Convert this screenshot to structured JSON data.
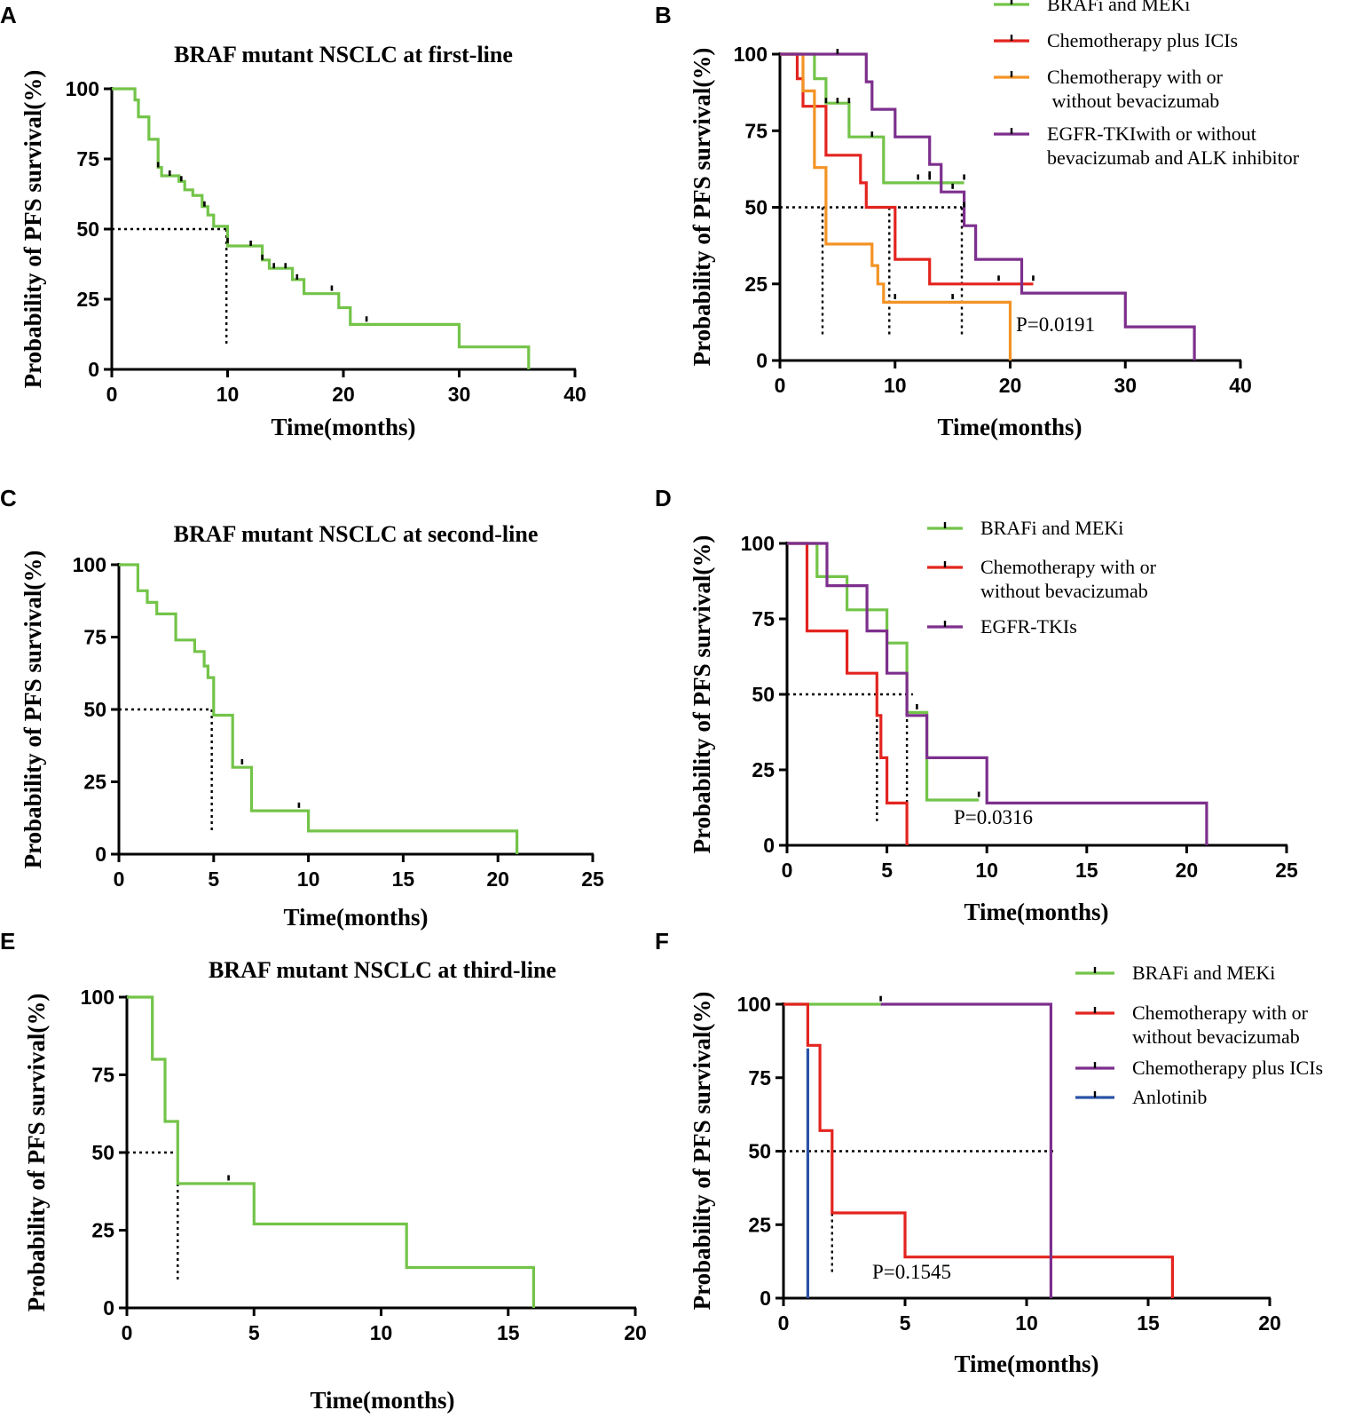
{
  "colors": {
    "green": "#73c449",
    "red": "#e3241f",
    "orange": "#f39325",
    "purple": "#7d2f8d",
    "blue": "#2b53a6",
    "axis": "#000000"
  },
  "chart_data": [
    {
      "panel": "A",
      "type": "line",
      "subtype": "kaplan-meier",
      "title": "BRAF mutant NSCLC at first-line",
      "xlabel": "Time(months)",
      "ylabel": "Probability of PFS survival(%)",
      "xlim": [
        0,
        40
      ],
      "ylim": [
        0,
        100
      ],
      "xticks": [
        0,
        10,
        20,
        30,
        40
      ],
      "yticks": [
        0,
        25,
        50,
        75,
        100
      ],
      "median": {
        "y": 50,
        "x": [
          9.9
        ],
        "x_end": 9.9
      },
      "pvalue": "",
      "legend": [],
      "series": [
        {
          "name": "BRAF mutant NSCLC at first-line",
          "color_key": "green",
          "steps": [
            [
              0,
              100
            ],
            [
              1.5,
              100
            ],
            [
              2,
              96
            ],
            [
              2.3,
              90
            ],
            [
              3.2,
              82
            ],
            [
              4,
              72
            ],
            [
              4.3,
              69
            ],
            [
              5.8,
              67
            ],
            [
              6.3,
              64
            ],
            [
              7,
              62
            ],
            [
              7.8,
              58
            ],
            [
              8.3,
              55
            ],
            [
              8.8,
              51
            ],
            [
              10,
              44
            ],
            [
              13,
              39
            ],
            [
              13.6,
              36
            ],
            [
              15.6,
              32
            ],
            [
              16.6,
              27
            ],
            [
              19.6,
              22
            ],
            [
              20.6,
              16
            ],
            [
              30,
              8
            ],
            [
              36,
              0
            ]
          ],
          "censors": [
            [
              4,
              72
            ],
            [
              5,
              69
            ],
            [
              6,
              67
            ],
            [
              8,
              58
            ],
            [
              10,
              45
            ],
            [
              12,
              44
            ],
            [
              13,
              39
            ],
            [
              14,
              36
            ],
            [
              15,
              36
            ],
            [
              16,
              32
            ],
            [
              19,
              28
            ],
            [
              22,
              17
            ]
          ]
        }
      ]
    },
    {
      "panel": "B",
      "type": "line",
      "subtype": "kaplan-meier",
      "title": "",
      "xlabel": "Time(months)",
      "ylabel": "Probability of PFS survival(%)",
      "xlim": [
        0,
        40
      ],
      "ylim": [
        0,
        100
      ],
      "xticks": [
        0,
        10,
        20,
        30,
        40
      ],
      "yticks": [
        0,
        25,
        50,
        75,
        100
      ],
      "median": {
        "y": 50,
        "x": [
          3.7,
          9.5,
          15.8
        ],
        "x_end": 15.8
      },
      "pvalue": "P=0.0191",
      "legend": [
        {
          "label": "BRAFi and MEKi",
          "color_key": "green"
        },
        {
          "label": "Chemotherapy plus ICIs",
          "color_key": "red"
        },
        {
          "label": "Chemotherapy with or",
          "label2": " without bevacizumab",
          "color_key": "orange"
        },
        {
          "label": "EGFR-TKIwith or without",
          "label2": "bevacizumab and ALK inhibitor",
          "color_key": "purple"
        }
      ],
      "series": [
        {
          "name": "BRAFi and MEKi",
          "color_key": "green",
          "steps": [
            [
              0,
              100
            ],
            [
              2,
              100
            ],
            [
              3,
              92
            ],
            [
              4,
              84
            ],
            [
              6,
              73
            ],
            [
              9,
              58
            ],
            [
              16,
              58
            ]
          ],
          "censors": [
            [
              4,
              84
            ],
            [
              5,
              84
            ],
            [
              6,
              84
            ],
            [
              8,
              73
            ],
            [
              12,
              59
            ],
            [
              13,
              59
            ],
            [
              16,
              59
            ]
          ]
        },
        {
          "name": "Chemotherapy plus ICIs",
          "color_key": "red",
          "steps": [
            [
              0,
              100
            ],
            [
              1.5,
              92
            ],
            [
              2,
              83
            ],
            [
              4,
              67
            ],
            [
              7,
              58
            ],
            [
              7.5,
              50
            ],
            [
              10,
              33
            ],
            [
              13,
              25
            ],
            [
              22,
              25
            ]
          ],
          "censors": [
            [
              19,
              26
            ],
            [
              22,
              26
            ]
          ]
        },
        {
          "name": "Chemotherapy with or without bevacizumab",
          "color_key": "orange",
          "steps": [
            [
              0,
              100
            ],
            [
              2,
              88
            ],
            [
              3,
              63
            ],
            [
              4,
              38
            ],
            [
              8,
              31
            ],
            [
              8.5,
              25
            ],
            [
              9,
              19
            ],
            [
              20,
              19
            ],
            [
              20,
              0
            ]
          ],
          "censors": [
            [
              10,
              20
            ],
            [
              15,
              20
            ]
          ]
        },
        {
          "name": "EGFR-TKIwith or without bevacizumab and ALK inhibitor",
          "color_key": "purple",
          "steps": [
            [
              0,
              100
            ],
            [
              7,
              100
            ],
            [
              7.5,
              91
            ],
            [
              8,
              82
            ],
            [
              10,
              73
            ],
            [
              13,
              64
            ],
            [
              14,
              55
            ],
            [
              16,
              44
            ],
            [
              17,
              33
            ],
            [
              21,
              22
            ],
            [
              30,
              11
            ],
            [
              36,
              0
            ]
          ],
          "censors": [
            [
              5,
              100
            ],
            [
              13,
              60
            ],
            [
              15,
              56
            ],
            [
              16,
              50
            ]
          ]
        }
      ]
    },
    {
      "panel": "C",
      "type": "line",
      "subtype": "kaplan-meier",
      "title": "BRAF mutant NSCLC at second-line",
      "xlabel": "Time(months)",
      "ylabel": "Probability of PFS survival(%)",
      "xlim": [
        0,
        25
      ],
      "ylim": [
        0,
        100
      ],
      "xticks": [
        0,
        5,
        10,
        15,
        20,
        25
      ],
      "yticks": [
        0,
        25,
        50,
        75,
        100
      ],
      "median": {
        "y": 50,
        "x": [
          4.9
        ],
        "x_end": 4.9
      },
      "pvalue": "",
      "legend": [],
      "series": [
        {
          "name": "BRAF mutant NSCLC at second-line",
          "color_key": "green",
          "steps": [
            [
              0,
              100
            ],
            [
              1,
              91
            ],
            [
              1.5,
              87
            ],
            [
              2,
              83
            ],
            [
              3,
              74
            ],
            [
              4,
              70
            ],
            [
              4.5,
              65
            ],
            [
              4.7,
              61
            ],
            [
              5,
              48
            ],
            [
              6,
              30
            ],
            [
              7,
              15
            ],
            [
              10,
              8
            ],
            [
              21,
              0
            ]
          ],
          "censors": [
            [
              6.5,
              31
            ],
            [
              9.5,
              16
            ]
          ]
        }
      ]
    },
    {
      "panel": "D",
      "type": "line",
      "subtype": "kaplan-meier",
      "title": "",
      "xlabel": "Time(months)",
      "ylabel": "Probability of PFS survival(%)",
      "xlim": [
        0,
        25
      ],
      "ylim": [
        0,
        100
      ],
      "xticks": [
        0,
        5,
        10,
        15,
        20,
        25
      ],
      "yticks": [
        0,
        25,
        50,
        75,
        100
      ],
      "median": {
        "y": 50,
        "x": [
          4.5,
          6
        ],
        "x_end": 6.3
      },
      "pvalue": "P=0.0316",
      "legend": [
        {
          "label": "BRAFi and MEKi",
          "color_key": "green"
        },
        {
          "label": "Chemotherapy with or",
          "label2": "without bevacizumab",
          "color_key": "red"
        },
        {
          "label": "EGFR-TKIs",
          "color_key": "purple"
        }
      ],
      "series": [
        {
          "name": "BRAFi and MEKi",
          "color_key": "green",
          "steps": [
            [
              0,
              100
            ],
            [
              1.5,
              89
            ],
            [
              3,
              78
            ],
            [
              5,
              67
            ],
            [
              6,
              44
            ],
            [
              7,
              15
            ],
            [
              9.6,
              15
            ]
          ],
          "censors": [
            [
              6.5,
              45
            ],
            [
              9.6,
              16
            ]
          ]
        },
        {
          "name": "Chemotherapy with or without bevacizumab",
          "color_key": "red",
          "steps": [
            [
              0,
              100
            ],
            [
              1,
              71
            ],
            [
              3,
              57
            ],
            [
              4.5,
              43
            ],
            [
              4.7,
              29
            ],
            [
              5,
              14
            ],
            [
              6,
              0
            ]
          ],
          "censors": []
        },
        {
          "name": "EGFR-TKIs",
          "color_key": "purple",
          "steps": [
            [
              0,
              100
            ],
            [
              2,
              86
            ],
            [
              4,
              71
            ],
            [
              5,
              57
            ],
            [
              6,
              43
            ],
            [
              7,
              29
            ],
            [
              10,
              14
            ],
            [
              21,
              0
            ]
          ],
          "censors": []
        }
      ]
    },
    {
      "panel": "E",
      "type": "line",
      "subtype": "kaplan-meier",
      "title": "BRAF mutant NSCLC at third-line",
      "xlabel": "Time(months)",
      "ylabel": "Probability of PFS survival(%)",
      "xlim": [
        0,
        20
      ],
      "ylim": [
        0,
        100
      ],
      "xticks": [
        0,
        5,
        10,
        15,
        20
      ],
      "yticks": [
        0,
        25,
        50,
        75,
        100
      ],
      "median": {
        "y": 50,
        "x": [
          2
        ],
        "x_end": 2
      },
      "pvalue": "",
      "legend": [],
      "series": [
        {
          "name": "BRAF mutant NSCLC at third-line",
          "color_key": "green",
          "steps": [
            [
              0,
              100
            ],
            [
              1,
              80
            ],
            [
              1.5,
              60
            ],
            [
              2,
              40
            ],
            [
              5,
              27
            ],
            [
              11,
              13
            ],
            [
              16,
              0
            ]
          ],
          "censors": [
            [
              4,
              41
            ]
          ]
        }
      ]
    },
    {
      "panel": "F",
      "type": "line",
      "subtype": "kaplan-meier",
      "title": "",
      "xlabel": "Time(months)",
      "ylabel": "Probability of PFS survival(%)",
      "xlim": [
        0,
        20
      ],
      "ylim": [
        0,
        100
      ],
      "xticks": [
        0,
        5,
        10,
        15,
        20
      ],
      "yticks": [
        0,
        25,
        50,
        75,
        100
      ],
      "median": {
        "y": 50,
        "x": [
          2,
          11
        ],
        "x_end": 11.2
      },
      "pvalue": "P=0.1545",
      "legend": [
        {
          "label": "BRAFi and MEKi",
          "color_key": "green"
        },
        {
          "label": "Chemotherapy with or",
          "label2": "without bevacizumab",
          "color_key": "red"
        },
        {
          "label": "Chemotherapy plus ICIs",
          "color_key": "purple"
        },
        {
          "label": "Anlotinib",
          "color_key": "blue"
        }
      ],
      "series": [
        {
          "name": "BRAFi and MEKi",
          "color_key": "green",
          "steps": [
            [
              0,
              100
            ],
            [
              4,
              100
            ]
          ],
          "censors": [
            [
              4,
              101
            ]
          ]
        },
        {
          "name": "Chemotherapy with or without bevacizumab",
          "color_key": "red",
          "steps": [
            [
              0,
              100
            ],
            [
              1,
              86
            ],
            [
              1.5,
              57
            ],
            [
              2,
              29
            ],
            [
              5,
              14
            ],
            [
              16,
              0
            ]
          ],
          "censors": []
        },
        {
          "name": "Chemotherapy plus ICIs",
          "color_key": "purple",
          "steps": [
            [
              4,
              100
            ],
            [
              11,
              0
            ]
          ],
          "censors": []
        },
        {
          "name": "Anlotinib",
          "color_key": "blue",
          "steps": [
            [
              1,
              85
            ],
            [
              1,
              0
            ]
          ],
          "censors": []
        }
      ]
    }
  ]
}
